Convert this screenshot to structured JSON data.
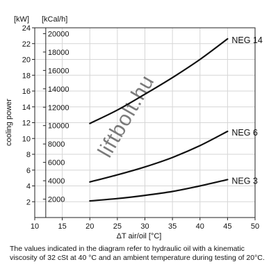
{
  "chart_data": {
    "type": "line",
    "xlabel": "ΔT air/oil [°C]",
    "ylabel": "cooling power",
    "unit_kw": "[kW]",
    "unit_kcal": "[kCal/h]",
    "xlim": [
      10,
      50
    ],
    "ylim": [
      0,
      24
    ],
    "x_ticks": [
      "10",
      "15",
      "20",
      "25",
      "30",
      "35",
      "40",
      "45",
      "50"
    ],
    "y_ticks_kw": [
      "2",
      "4",
      "6",
      "8",
      "10",
      "12",
      "14",
      "16",
      "18",
      "20",
      "22",
      "24"
    ],
    "y_ticks_kcal": [
      "2000",
      "4000",
      "6000",
      "8000",
      "10000",
      "12000",
      "14000",
      "16000",
      "18000",
      "20000"
    ],
    "grid": true,
    "watermark": "liftbolt.hu",
    "series": [
      {
        "name": "NEG 14",
        "x": [
          20,
          25,
          30,
          35,
          40,
          45
        ],
        "y": [
          11.9,
          13.6,
          15.6,
          17.7,
          20.0,
          22.6
        ]
      },
      {
        "name": "NEG 6",
        "x": [
          20,
          25,
          30,
          35,
          40,
          45
        ],
        "y": [
          4.5,
          5.4,
          6.4,
          7.6,
          9.1,
          10.9
        ]
      },
      {
        "name": "NEG 3",
        "x": [
          20,
          25,
          30,
          35,
          40,
          45
        ],
        "y": [
          2.1,
          2.4,
          2.8,
          3.3,
          4.0,
          4.8
        ]
      }
    ]
  },
  "footnote": "The values indicated in the diagram refer to hydraulic oil with a kinematic viscosity of 32 cSt at 40 °C and an ambient temperature during testing of 20°C."
}
